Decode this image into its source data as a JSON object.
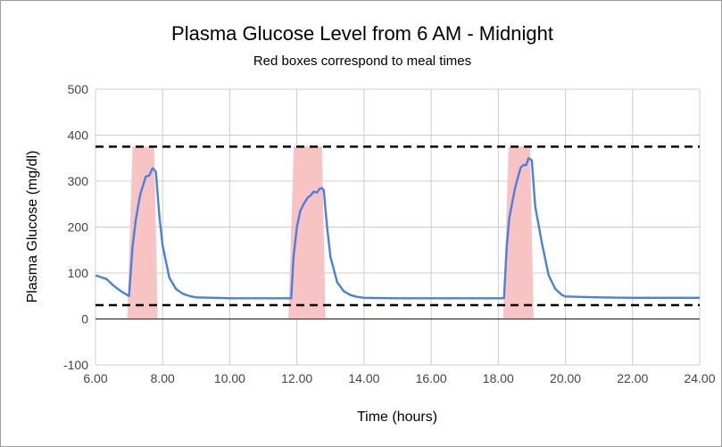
{
  "chart_data": {
    "type": "line",
    "title": "Plasma Glucose Level from 6 AM - Midnight",
    "subtitle": "Red boxes correspond to meal times",
    "xlabel": "Time (hours)",
    "ylabel": "Plasma Glucose (mg/dl)",
    "xlim": [
      6,
      24
    ],
    "ylim": [
      -100,
      500
    ],
    "x_ticks": [
      "6.00",
      "8.00",
      "10.00",
      "12.00",
      "14.00",
      "16.00",
      "18.00",
      "20.00",
      "22.00",
      "24.00"
    ],
    "y_ticks": [
      "500",
      "400",
      "300",
      "200",
      "100",
      "0",
      "-100"
    ],
    "grid": true,
    "thresholds": [
      375,
      30
    ],
    "meal_boxes": [
      {
        "start": 7.0,
        "end": 7.8,
        "top": 375
      },
      {
        "start": 11.8,
        "end": 12.8,
        "top": 375
      },
      {
        "start": 18.2,
        "end": 19.0,
        "top": 375
      }
    ],
    "series": [
      {
        "x": [
          6.0,
          6.2,
          6.33,
          6.5,
          6.67,
          6.83,
          7.0,
          7.1,
          7.2,
          7.33,
          7.5,
          7.6,
          7.7,
          7.75,
          7.8,
          7.9,
          8.0,
          8.2,
          8.4,
          8.6,
          8.8,
          9.0,
          10.0,
          11.0,
          11.6,
          11.83,
          11.9,
          12.0,
          12.1,
          12.2,
          12.33,
          12.4,
          12.5,
          12.6,
          12.67,
          12.75,
          12.8,
          12.9,
          13.0,
          13.2,
          13.4,
          13.6,
          13.8,
          14.0,
          15.0,
          16.0,
          17.0,
          18.0,
          18.17,
          18.25,
          18.33,
          18.5,
          18.67,
          18.75,
          18.83,
          18.9,
          19.0,
          19.1,
          19.3,
          19.5,
          19.7,
          19.9,
          20.0,
          21.0,
          22.0,
          23.0,
          24.0
        ],
        "values": [
          95,
          90,
          87,
          75,
          65,
          57,
          50,
          155,
          215,
          270,
          310,
          312,
          328,
          325,
          320,
          225,
          160,
          90,
          65,
          55,
          50,
          47,
          45,
          45,
          45,
          45,
          135,
          200,
          235,
          250,
          265,
          268,
          277,
          275,
          283,
          285,
          280,
          200,
          135,
          80,
          60,
          52,
          48,
          46,
          45,
          45,
          45,
          45,
          45,
          155,
          220,
          285,
          330,
          335,
          335,
          350,
          345,
          245,
          165,
          95,
          65,
          52,
          49,
          47,
          46,
          46,
          46
        ],
        "color": "#4a7fe0"
      }
    ],
    "colors": {
      "line": "#4a7fe0",
      "meal_box": "#f8c3c3",
      "threshold": "#000000",
      "grid": "#cccccc",
      "zero_line": "#333333"
    }
  }
}
